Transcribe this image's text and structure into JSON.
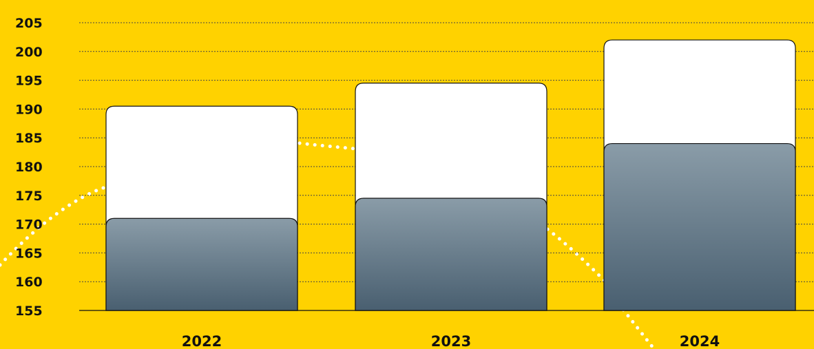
{
  "colors": {
    "background": "#FFD200",
    "bar_total": "#FFFFFF",
    "bar_part_top": "#8A9CA8",
    "bar_part_bottom": "#495F70",
    "gridline": "#444444",
    "decor_dots": "#FFFFFF"
  },
  "chart_data": {
    "type": "bar",
    "title": "",
    "xlabel": "",
    "ylabel": "",
    "categories": [
      "2022",
      "2023",
      "2024"
    ],
    "series": [
      {
        "values": [
          190.5,
          194.5,
          202
        ]
      },
      {
        "values": [
          171,
          174.5,
          184
        ]
      }
    ],
    "overlap": true,
    "ylim": [
      155,
      205
    ],
    "yticks": [
      155,
      160,
      165,
      170,
      175,
      180,
      185,
      190,
      195,
      200,
      205
    ],
    "grid": true
  }
}
